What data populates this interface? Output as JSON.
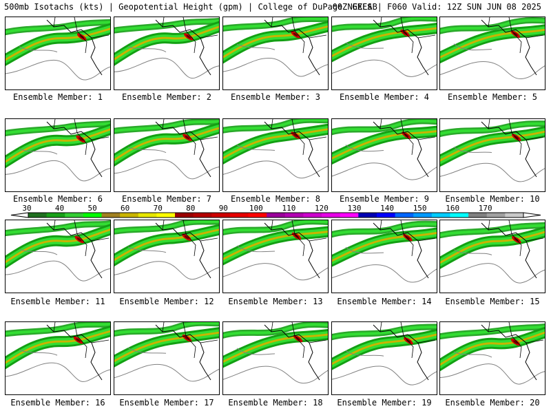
{
  "header": {
    "left": "500mb Isotachs (kts) | Geopotential Height (gpm) | College of DuPage NEXLAB",
    "right": "00Z GEFS | F060 Valid: 12Z SUN JUN 08 2025"
  },
  "members": [
    "Ensemble Member: 1",
    "Ensemble Member: 2",
    "Ensemble Member: 3",
    "Ensemble Member: 4",
    "Ensemble Member: 5",
    "Ensemble Member: 6",
    "Ensemble Member: 7",
    "Ensemble Member: 8",
    "Ensemble Member: 9",
    "Ensemble Member: 10",
    "Ensemble Member: 11",
    "Ensemble Member: 12",
    "Ensemble Member: 13",
    "Ensemble Member: 14",
    "Ensemble Member: 15",
    "Ensemble Member: 16",
    "Ensemble Member: 17",
    "Ensemble Member: 18",
    "Ensemble Member: 19",
    "Ensemble Member: 20"
  ],
  "colorbar": {
    "ticks": [
      "30",
      "40",
      "50",
      "60",
      "70",
      "80",
      "90",
      "100",
      "110",
      "120",
      "130",
      "140",
      "150",
      "160",
      "170"
    ],
    "colors": [
      "#1f6f1f",
      "#18a018",
      "#33cc33",
      "#00ff00",
      "#a08020",
      "#c8b400",
      "#e6e600",
      "#ffff00",
      "#990000",
      "#b30000",
      "#cc0000",
      "#e60000",
      "#ff0000",
      "#990099",
      "#b300b3",
      "#cc00cc",
      "#e600e6",
      "#ff00ff",
      "#0000b3",
      "#0000ff",
      "#0066ff",
      "#0099ff",
      "#00ccff",
      "#00ffff",
      "#808080",
      "#a0a0a0",
      "#c8c8c8"
    ]
  },
  "map_colors": {
    "jet_outer": "#13a013",
    "jet_inner": "#33dd33",
    "jet_speed": "#c8b400",
    "jet_core": "#cc0000",
    "jet_max": "#660000",
    "height_contour": "#808080",
    "border": "#000000"
  }
}
